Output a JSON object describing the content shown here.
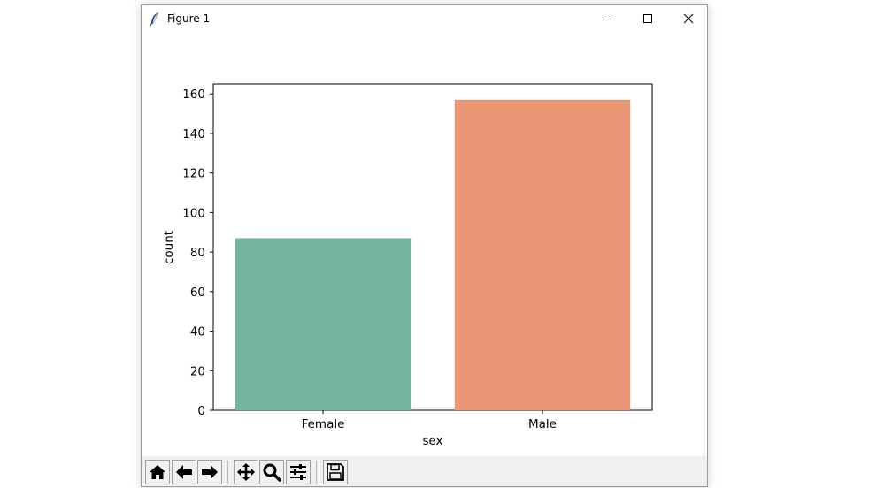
{
  "window": {
    "title": "Figure 1",
    "icons": {
      "app": "feather-icon",
      "minimize": "minimize-icon",
      "maximize": "maximize-icon",
      "close": "close-icon"
    }
  },
  "toolbar": {
    "buttons": [
      {
        "name": "home-button",
        "icon": "home-icon"
      },
      {
        "name": "back-button",
        "icon": "arrow-left-icon"
      },
      {
        "name": "forward-button",
        "icon": "arrow-right-icon"
      },
      {
        "name": "pan-button",
        "icon": "move-icon"
      },
      {
        "name": "zoom-button",
        "icon": "magnifier-icon"
      },
      {
        "name": "configure-subplots-button",
        "icon": "sliders-icon"
      },
      {
        "name": "save-button",
        "icon": "floppy-disk-icon"
      }
    ]
  },
  "chart_data": {
    "type": "bar",
    "categories": [
      "Female",
      "Male"
    ],
    "values": [
      87,
      157
    ],
    "colors": [
      "#75b5a0",
      "#e99674"
    ],
    "xlabel": "sex",
    "ylabel": "count",
    "ylim": [
      0,
      165
    ],
    "yticks": [
      0,
      20,
      40,
      60,
      80,
      100,
      120,
      140,
      160
    ],
    "grid": false
  }
}
